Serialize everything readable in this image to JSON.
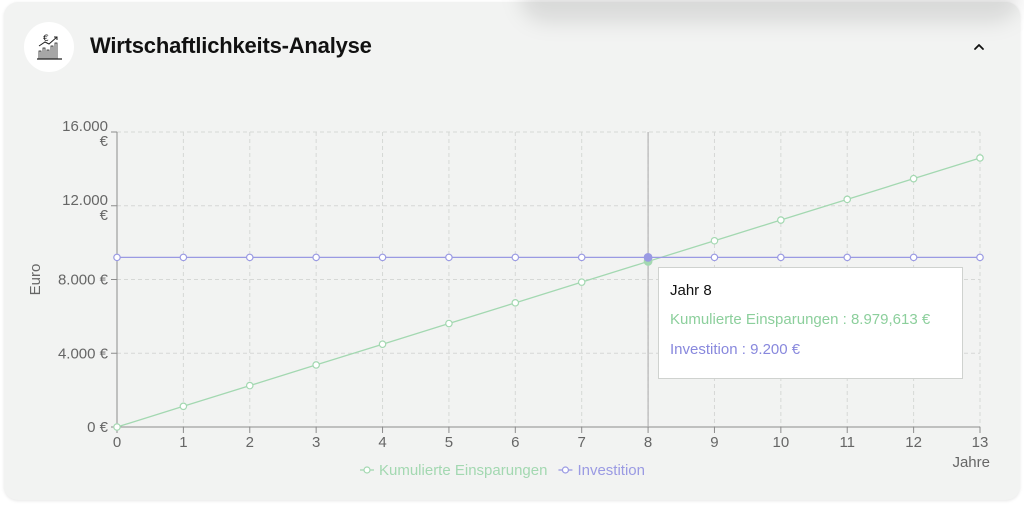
{
  "header": {
    "title": "Wirtschaftlichkeits-Analyse",
    "icon": "euro-chart-icon",
    "collapse_icon": "chevron-up-icon",
    "collapse_symbol": "^"
  },
  "tooltip": {
    "title": "Jahr 8",
    "series1_label": "Kumulierte Einsparungen",
    "series1_value": "8.979,613 €",
    "series2_label": "Investition",
    "series2_value": "9.200 €"
  },
  "chart_data": {
    "type": "line",
    "title": "",
    "xlabel": "Jahre",
    "ylabel": "Euro",
    "x": [
      0,
      1,
      2,
      3,
      4,
      5,
      6,
      7,
      8,
      9,
      10,
      11,
      12,
      13
    ],
    "xlim": [
      0,
      13
    ],
    "ylim": [
      0,
      16000
    ],
    "y_ticks": [
      0,
      4000,
      8000,
      12000,
      16000
    ],
    "y_tick_labels": [
      "0 €",
      "4.000 €",
      "8.000 €",
      "12.000 €",
      "16.000 €"
    ],
    "grid": true,
    "legend_position": "bottom",
    "highlight_x": 8,
    "series": [
      {
        "name": "Kumulierte Einsparungen",
        "color": "#a3d8b1",
        "values": [
          0,
          1122.45,
          2244.9,
          3367.36,
          4489.81,
          5612.26,
          6734.71,
          7857.16,
          8979.61,
          10102.07,
          11224.52,
          12346.97,
          13469.42,
          14591.87
        ]
      },
      {
        "name": "Investition",
        "color": "#9a9ae3",
        "values": [
          9200,
          9200,
          9200,
          9200,
          9200,
          9200,
          9200,
          9200,
          9200,
          9200,
          9200,
          9200,
          9200,
          9200
        ]
      }
    ]
  }
}
